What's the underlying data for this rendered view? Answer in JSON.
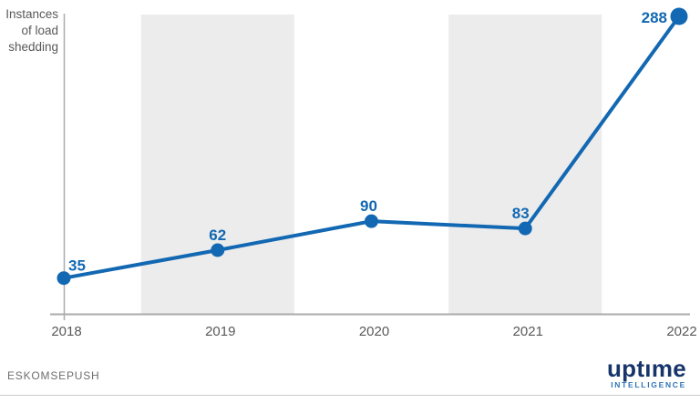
{
  "chart_data": {
    "type": "line",
    "title": "",
    "ylabel": "Instances\nof load\nshedding",
    "xlabel": "",
    "categories": [
      "2018",
      "2019",
      "2020",
      "2021",
      "2022"
    ],
    "series": [
      {
        "name": "Instances of load shedding",
        "values": [
          35,
          62,
          90,
          83,
          288
        ]
      }
    ],
    "data_labels": [
      "35",
      "62",
      "90",
      "83",
      "288"
    ],
    "ylim": [
      0,
      288
    ],
    "grid": false,
    "legend": "none",
    "shaded_band_categories": [
      "2019",
      "2021"
    ]
  },
  "colors": {
    "line": "#1268b2",
    "point": "#1268b2",
    "value_label": "#1268b2",
    "band": "#ececec",
    "axis": "#ababab",
    "tick_text": "#595959",
    "brand_navy": "#17356b",
    "brand_light_blue": "#2f74b8",
    "divider": "#c9c9c9"
  },
  "footer": {
    "source": "ESKOMSEPUSH",
    "brand": "uptıme",
    "brand_sub": "INTELLIGENCE"
  }
}
